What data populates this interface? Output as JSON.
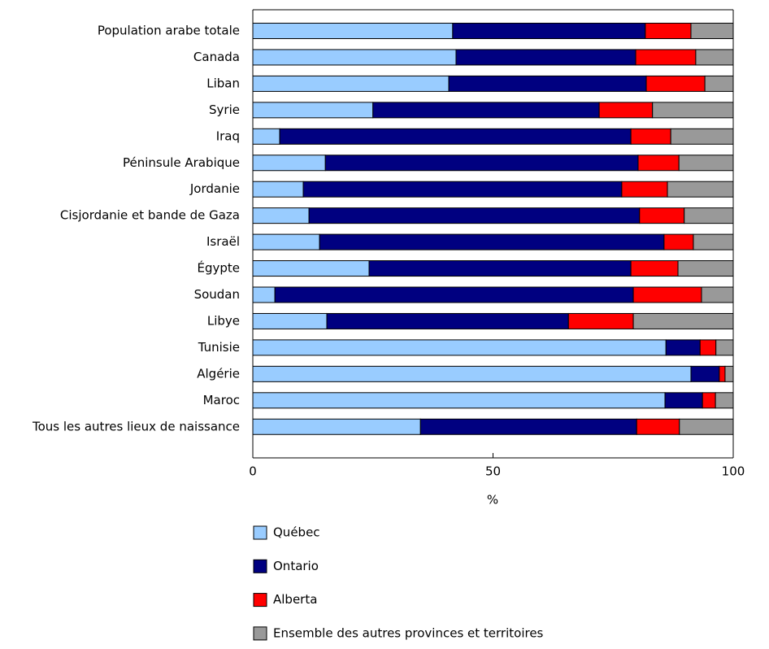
{
  "chart_data": {
    "type": "stacked-bar-horizontal",
    "categories": [
      "Population arabe totale",
      "Canada",
      "Liban",
      "Syrie",
      "Iraq",
      "Péninsule Arabique",
      "Jordanie",
      "Cisjordanie et bande de Gaza",
      "Israël",
      "Égypte",
      "Soudan",
      "Libye",
      "Tunisie",
      "Algérie",
      "Maroc",
      "Tous les autres lieux de naissance"
    ],
    "series": [
      {
        "name": "Québec",
        "color": "#99ccff",
        "values": [
          41.6,
          42.3,
          40.8,
          25.0,
          5.6,
          15.1,
          10.5,
          11.7,
          13.9,
          24.2,
          4.6,
          15.4,
          86.0,
          91.2,
          85.8,
          34.9
        ]
      },
      {
        "name": "Ontario",
        "color": "#000080",
        "values": [
          40.1,
          37.4,
          41.1,
          47.1,
          73.1,
          65.1,
          66.3,
          68.8,
          71.7,
          54.5,
          74.6,
          50.3,
          7.1,
          5.9,
          7.8,
          45.0
        ]
      },
      {
        "name": "Alberta",
        "color": "#ff0000",
        "values": [
          9.5,
          12.5,
          12.2,
          11.1,
          8.3,
          8.5,
          9.5,
          9.3,
          6.1,
          9.8,
          14.2,
          13.5,
          3.3,
          1.2,
          2.7,
          8.9
        ]
      },
      {
        "name": "Ensemble des autres provinces et territoires",
        "color": "#999999",
        "values": [
          8.8,
          7.8,
          5.9,
          16.8,
          13.0,
          11.3,
          13.7,
          10.2,
          8.3,
          11.5,
          6.6,
          20.8,
          3.6,
          1.7,
          3.7,
          11.2
        ]
      }
    ],
    "xlabel": "%",
    "xlim": [
      0,
      100
    ],
    "xticks": [
      0,
      50,
      100
    ],
    "grid": false
  }
}
